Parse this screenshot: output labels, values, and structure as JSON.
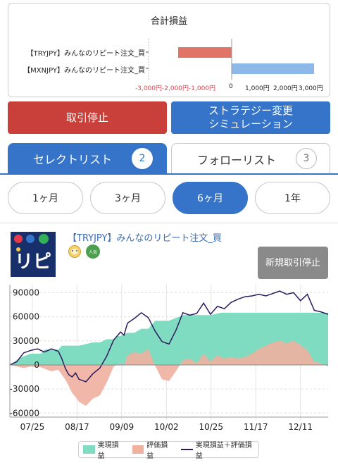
{
  "summary": {
    "title": "合計損益",
    "rows": [
      {
        "label": "【TRYJPY】みんなのリピート注文_買",
        "value": -1950
      },
      {
        "label": "【MXNJPY】みんなのリピート注文_買",
        "value": 3000
      }
    ],
    "ticks_negative": [
      "-3,000円",
      "-2,000円",
      "-1,000円"
    ],
    "tick_zero": "0",
    "ticks_positive": [
      "1,000円",
      "2,000円",
      "3,000円"
    ],
    "colors": {
      "negative": "#e07466",
      "positive": "#8eb8e8"
    }
  },
  "actions": {
    "stop_label": "取引停止",
    "strategy_line1": "ストラテジー変更",
    "strategy_line2": "シミュレーション"
  },
  "tabs": {
    "select": {
      "label": "セレクトリスト",
      "count": "2"
    },
    "follow": {
      "label": "フォローリスト",
      "count": "3"
    }
  },
  "periods": [
    "1ヶ月",
    "3ヶ月",
    "6ヶ月",
    "1年"
  ],
  "active_period": "6ヶ月",
  "strategy": {
    "logo_text": "リピ",
    "name": "【TRYJPY】みんなのリピート注文_買",
    "badge_popular": "人気",
    "stop_new_label": "新規取引停止"
  },
  "chart_data": {
    "type": "area",
    "y_ticks": [
      "90000",
      "60000",
      "30000",
      "0",
      "-30000",
      "-60000"
    ],
    "x_ticks": [
      "07/25",
      "08/17",
      "09/09",
      "10/02",
      "10/25",
      "11/17",
      "12/11"
    ],
    "ylim": [
      -65000,
      100000
    ],
    "legend": [
      "実現損益",
      "評価損益",
      "実現損益＋評価損益"
    ],
    "colors": {
      "realized": "#7fdcc0",
      "unrealized": "#efb0a0",
      "total": "#2b1a5e"
    },
    "series": [
      {
        "name": "実現損益",
        "x": [
          0,
          3,
          6,
          9,
          10,
          14,
          15,
          20,
          24,
          26,
          28,
          30,
          31,
          32,
          34,
          36,
          38,
          40,
          42,
          46,
          50,
          54,
          58,
          61,
          62,
          70,
          78,
          86,
          92
        ],
        "values": [
          0,
          9000,
          14000,
          14000,
          19000,
          19000,
          24000,
          24000,
          28000,
          28000,
          32000,
          32000,
          36000,
          36000,
          40000,
          40000,
          45000,
          45000,
          55000,
          55000,
          62000,
          62000,
          62000,
          65000,
          65000,
          65000,
          65000,
          65000,
          65000
        ]
      },
      {
        "name": "評価損益",
        "x": [
          0,
          4,
          6,
          9,
          12,
          14,
          16,
          17,
          18,
          19,
          20,
          22,
          24,
          26,
          28,
          30,
          32,
          33,
          34,
          36,
          38,
          40,
          42,
          44,
          46,
          48,
          50,
          52,
          54,
          56,
          58,
          60,
          62,
          64,
          66,
          68,
          70,
          72,
          74,
          76,
          78,
          80,
          82,
          84,
          86,
          88,
          90,
          92
        ],
        "values": [
          0,
          -4000,
          -2000,
          -3000,
          -8000,
          -6000,
          -18000,
          -26000,
          -35000,
          -40000,
          -46000,
          -51000,
          -42000,
          -38000,
          -22000,
          -2000,
          2000,
          -1000,
          12000,
          16000,
          14000,
          20000,
          -1000,
          -18000,
          -20000,
          -8000,
          6000,
          8000,
          2000,
          14000,
          4000,
          12000,
          8000,
          10000,
          8000,
          10000,
          14000,
          20000,
          24000,
          28000,
          30000,
          27000,
          30000,
          25000,
          18000,
          4000,
          2000,
          -2000
        ]
      },
      {
        "name": "実現損益＋評価損益",
        "x": [
          0,
          2,
          4,
          6,
          8,
          10,
          12,
          14,
          15,
          16,
          17,
          18,
          19,
          20,
          22,
          24,
          26,
          28,
          30,
          32,
          33,
          34,
          36,
          38,
          40,
          42,
          44,
          46,
          48,
          50,
          52,
          54,
          56,
          58,
          60,
          62,
          64,
          66,
          68,
          70,
          72,
          74,
          76,
          78,
          80,
          82,
          84,
          86,
          88,
          90,
          92
        ],
        "values": [
          0,
          4000,
          15000,
          18000,
          20000,
          16000,
          20000,
          17000,
          8000,
          -4000,
          -12000,
          -15000,
          -10000,
          -18000,
          -21000,
          -11000,
          -4000,
          11000,
          31000,
          41000,
          37000,
          52000,
          58000,
          65000,
          59000,
          42000,
          29000,
          26000,
          43000,
          65000,
          62000,
          64000,
          77000,
          63000,
          73000,
          70000,
          78000,
          82000,
          85000,
          86000,
          88000,
          86000,
          89000,
          92000,
          88000,
          90000,
          80000,
          88000,
          68000,
          66000,
          63000
        ]
      }
    ]
  }
}
